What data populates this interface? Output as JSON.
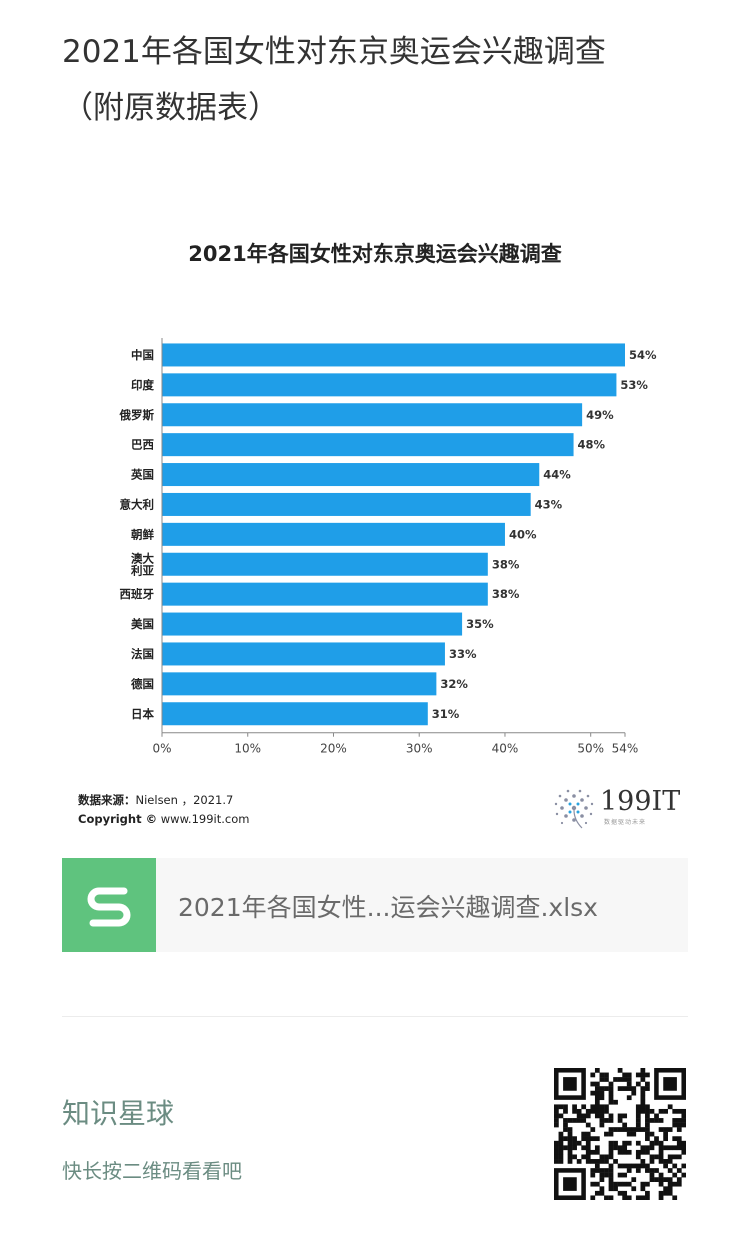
{
  "article": {
    "title_line1": "2021年各国女性对东京奥运会兴趣调查",
    "title_line2": "（附原数据表）"
  },
  "chart_data": {
    "type": "bar",
    "orientation": "horizontal",
    "title": "2021年各国女性对东京奥运会兴趣调查",
    "categories": [
      "中国",
      "印度",
      "俄罗斯",
      "巴西",
      "英国",
      "意大利",
      "朝鲜",
      "澳大利亚",
      "西班牙",
      "美国",
      "法国",
      "德国",
      "日本"
    ],
    "category_label_lines": [
      [
        "中国"
      ],
      [
        "印度"
      ],
      [
        "俄罗斯"
      ],
      [
        "巴西"
      ],
      [
        "英国"
      ],
      [
        "意大利"
      ],
      [
        "朝鲜"
      ],
      [
        "澳大",
        "利亚"
      ],
      [
        "西班牙"
      ],
      [
        "美国"
      ],
      [
        "法国"
      ],
      [
        "德国"
      ],
      [
        "日本"
      ]
    ],
    "values": [
      54,
      53,
      49,
      48,
      44,
      43,
      40,
      38,
      38,
      35,
      33,
      32,
      31
    ],
    "data_labels": [
      "54%",
      "53%",
      "49%",
      "48%",
      "44%",
      "43%",
      "40%",
      "38%",
      "38%",
      "35%",
      "33%",
      "32%",
      "31%"
    ],
    "xlim": [
      0,
      54
    ],
    "xticks": [
      0,
      10,
      20,
      30,
      40,
      50,
      54
    ],
    "xtick_labels": [
      "0%",
      "10%",
      "20%",
      "30%",
      "40%",
      "50%",
      "54%"
    ],
    "bar_color": "#1f9ee8",
    "legend": "none",
    "grid": false
  },
  "chart_footer": {
    "source_label": "数据来源：",
    "source_value": "Nielsen ，2021.7",
    "copyright_label": "Copyright ©",
    "copyright_value": " www.199it.com",
    "brand_name": "199IT",
    "brand_tagline": "数据驱动未来"
  },
  "attachment": {
    "file_name": "2021年各国女性...运会兴趣调查.xlsx",
    "icon": "spreadsheet-s-icon",
    "icon_color": "#5fc37e"
  },
  "promo": {
    "title": "知识星球",
    "subtitle": "快长按二维码看看吧"
  }
}
